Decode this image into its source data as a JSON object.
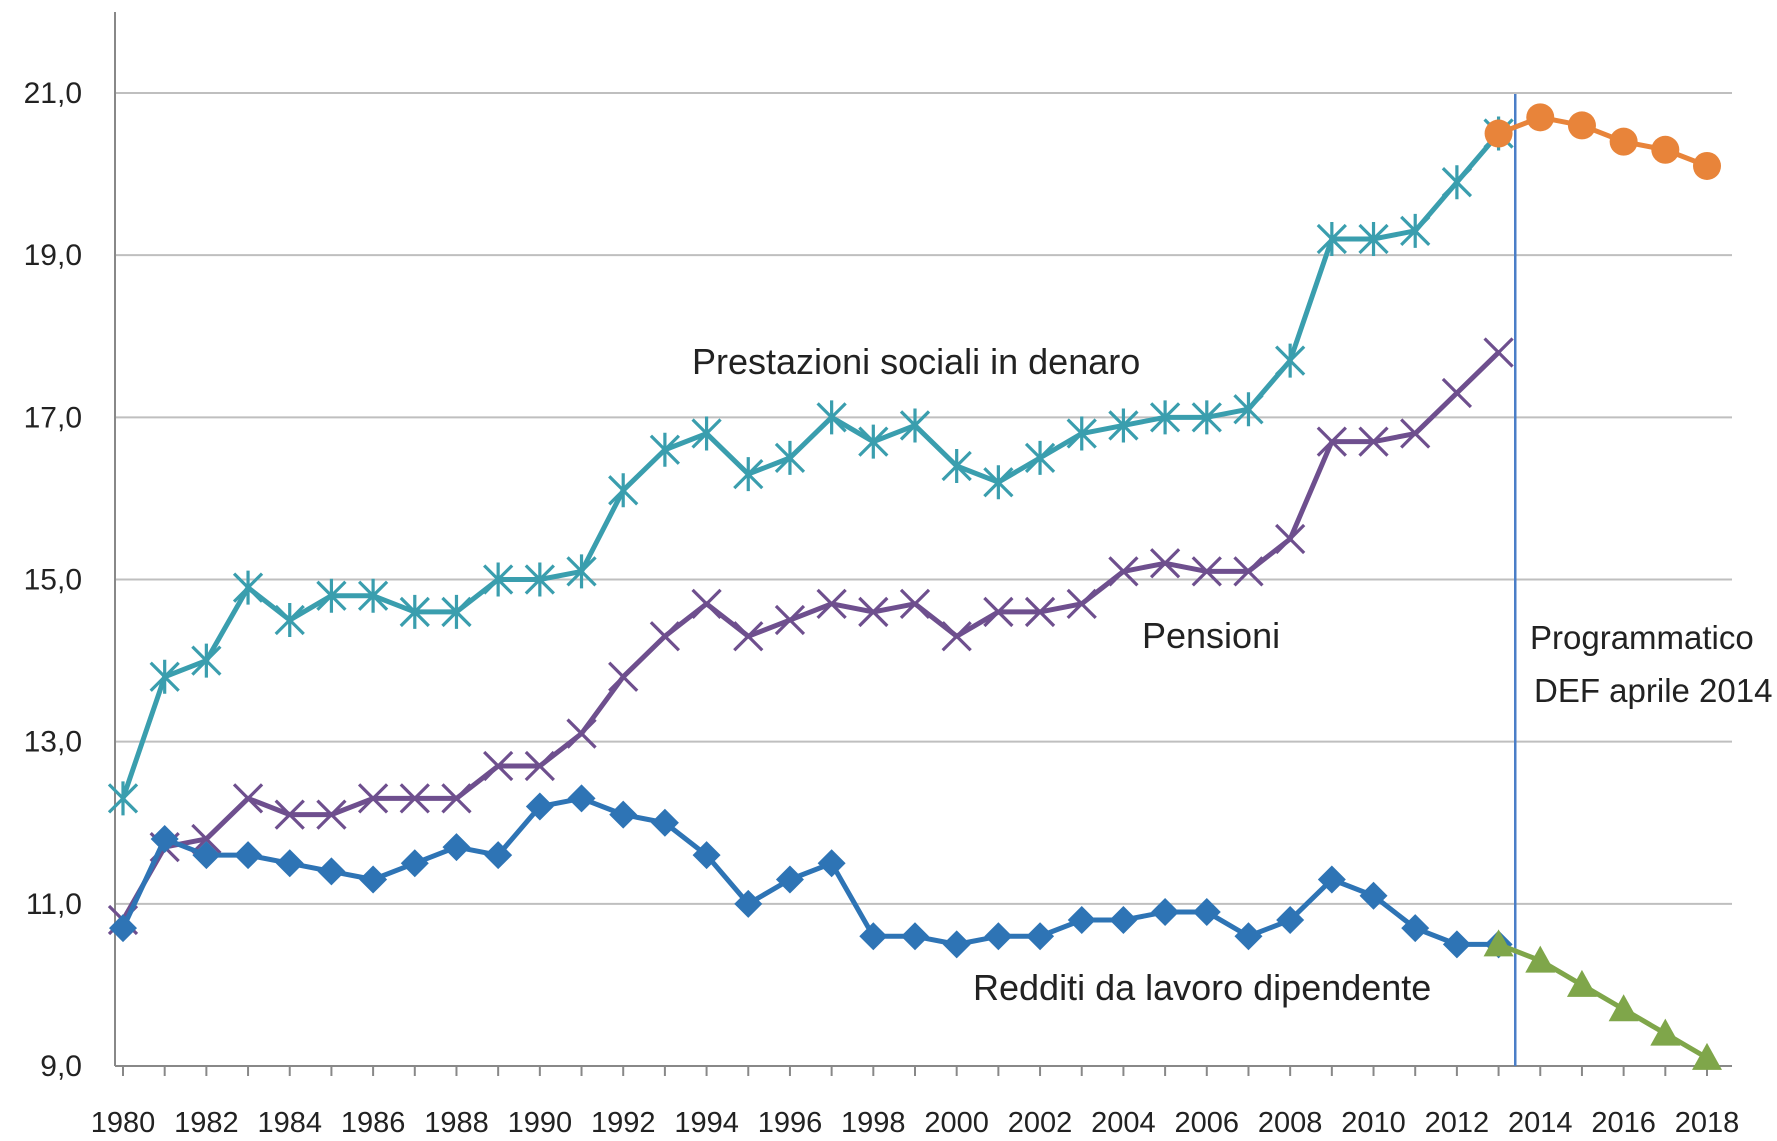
{
  "chart_data": {
    "type": "line",
    "x": [
      1980,
      1981,
      1982,
      1983,
      1984,
      1985,
      1986,
      1987,
      1988,
      1989,
      1990,
      1991,
      1992,
      1993,
      1994,
      1995,
      1996,
      1997,
      1998,
      1999,
      2000,
      2001,
      2002,
      2003,
      2004,
      2005,
      2006,
      2007,
      2008,
      2009,
      2010,
      2011,
      2012,
      2013,
      2014,
      2015,
      2016,
      2017,
      2018
    ],
    "xtick_labels": [
      "1980",
      "1982",
      "1984",
      "1986",
      "1988",
      "1990",
      "1992",
      "1994",
      "1996",
      "1998",
      "2000",
      "2002",
      "2004",
      "2006",
      "2008",
      "2010",
      "2012",
      "2014",
      "2016",
      "2018"
    ],
    "xtick_values": [
      1980,
      1982,
      1984,
      1986,
      1988,
      1990,
      1992,
      1994,
      1996,
      1998,
      2000,
      2002,
      2004,
      2006,
      2008,
      2010,
      2012,
      2014,
      2016,
      2018
    ],
    "ylim": [
      9.0,
      22.0
    ],
    "ytick_labels": [
      "9,0",
      "11,0",
      "13,0",
      "15,0",
      "17,0",
      "19,0",
      "21,0"
    ],
    "ytick_values": [
      9,
      11,
      13,
      15,
      17,
      19,
      21
    ],
    "grid": "horizontal",
    "divider_x": 2013.4,
    "series": [
      {
        "name": "Prestazioni sociali in denaro",
        "color": "#3a9eae",
        "marker": "asterisk",
        "x": [
          1980,
          1981,
          1982,
          1983,
          1984,
          1985,
          1986,
          1987,
          1988,
          1989,
          1990,
          1991,
          1992,
          1993,
          1994,
          1995,
          1996,
          1997,
          1998,
          1999,
          2000,
          2001,
          2002,
          2003,
          2004,
          2005,
          2006,
          2007,
          2008,
          2009,
          2010,
          2011,
          2012,
          2013
        ],
        "values": [
          12.3,
          13.8,
          14.0,
          14.9,
          14.5,
          14.8,
          14.8,
          14.6,
          14.6,
          15.0,
          15.0,
          15.1,
          16.1,
          16.6,
          16.8,
          16.3,
          16.5,
          17.0,
          16.7,
          16.9,
          16.4,
          16.2,
          16.5,
          16.8,
          16.9,
          17.0,
          17.0,
          17.1,
          17.7,
          19.2,
          19.2,
          19.3,
          19.9,
          20.5
        ]
      },
      {
        "name": "Pensioni",
        "color": "#6e4f8e",
        "marker": "cross",
        "x": [
          1980,
          1981,
          1982,
          1983,
          1984,
          1985,
          1986,
          1987,
          1988,
          1989,
          1990,
          1991,
          1992,
          1993,
          1994,
          1995,
          1996,
          1997,
          1998,
          1999,
          2000,
          2001,
          2002,
          2003,
          2004,
          2005,
          2006,
          2007,
          2008,
          2009,
          2010,
          2011,
          2012,
          2013
        ],
        "values": [
          10.8,
          11.7,
          11.8,
          12.3,
          12.1,
          12.1,
          12.3,
          12.3,
          12.3,
          12.7,
          12.7,
          13.1,
          13.8,
          14.3,
          14.7,
          14.3,
          14.5,
          14.7,
          14.6,
          14.7,
          14.3,
          14.6,
          14.6,
          14.7,
          15.1,
          15.2,
          15.1,
          15.1,
          15.5,
          16.7,
          16.7,
          16.8,
          17.3,
          17.8
        ]
      },
      {
        "name": "Redditi da lavoro dipendente",
        "color": "#2e74b5",
        "marker": "diamond",
        "x": [
          1980,
          1981,
          1982,
          1983,
          1984,
          1985,
          1986,
          1987,
          1988,
          1989,
          1990,
          1991,
          1992,
          1993,
          1994,
          1995,
          1996,
          1997,
          1998,
          1999,
          2000,
          2001,
          2002,
          2003,
          2004,
          2005,
          2006,
          2007,
          2008,
          2009,
          2010,
          2011,
          2012,
          2013
        ],
        "values": [
          10.7,
          11.8,
          11.6,
          11.6,
          11.5,
          11.4,
          11.3,
          11.5,
          11.7,
          11.6,
          12.2,
          12.3,
          12.1,
          12.0,
          11.6,
          11.0,
          11.3,
          11.5,
          10.6,
          10.6,
          10.5,
          10.6,
          10.6,
          10.8,
          10.8,
          10.9,
          10.9,
          10.6,
          10.8,
          11.3,
          11.1,
          10.7,
          10.5,
          10.5
        ]
      },
      {
        "name": "",
        "color": "#e8843a",
        "marker": "circle",
        "x": [
          2013,
          2014,
          2015,
          2016,
          2017,
          2018
        ],
        "values": [
          20.5,
          20.7,
          20.6,
          20.4,
          20.3,
          20.1
        ]
      },
      {
        "name": "",
        "color": "#7fa64a",
        "marker": "triangle",
        "x": [
          2013,
          2014,
          2015,
          2016,
          2017,
          2018
        ],
        "values": [
          10.5,
          10.3,
          10.0,
          9.7,
          9.4,
          9.1
        ]
      }
    ],
    "annotations": [
      {
        "text": "Prestazioni sociali in denaro"
      },
      {
        "text": "Pensioni"
      },
      {
        "text": "Redditi da lavoro dipendente"
      },
      {
        "text": "Programmatico"
      },
      {
        "text": "DEF aprile 2014"
      }
    ]
  }
}
